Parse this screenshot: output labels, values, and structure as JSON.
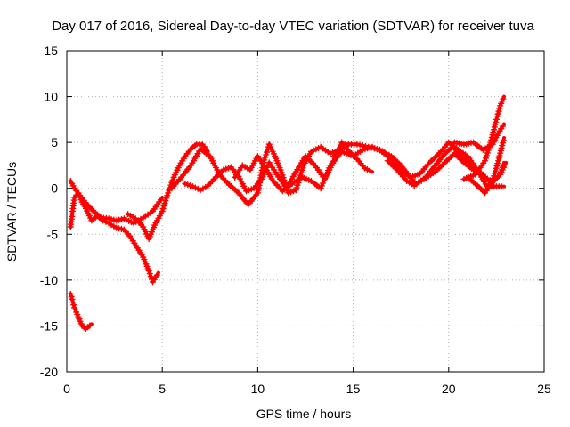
{
  "chart_data": {
    "type": "scatter",
    "title": "Day 017 of 2016, Sidereal Day-to-day VTEC variation (SDTVAR) for receiver tuva",
    "xlabel": "GPS time / hours",
    "ylabel": "SDTVAR / TECUs",
    "xlim": [
      0,
      25
    ],
    "ylim": [
      -20,
      15
    ],
    "xticks": [
      "0",
      "5",
      "10",
      "15",
      "20",
      "25"
    ],
    "yticks": [
      "-20",
      "-15",
      "-10",
      "-5",
      "0",
      "5",
      "10",
      "15"
    ],
    "grid": true,
    "marker": "plus",
    "color": "#ff0000",
    "series": [
      {
        "name": "trace-1",
        "points": [
          [
            0.2,
            -11.5
          ],
          [
            0.4,
            -13
          ],
          [
            0.6,
            -14
          ],
          [
            0.8,
            -15
          ],
          [
            1.0,
            -15.3
          ],
          [
            1.3,
            -14.8
          ]
        ]
      },
      {
        "name": "trace-2",
        "points": [
          [
            0.2,
            -4.2
          ],
          [
            0.3,
            -2.5
          ],
          [
            0.4,
            -1
          ],
          [
            0.6,
            -0.5
          ],
          [
            0.8,
            -1.5
          ],
          [
            1.0,
            -2.2
          ],
          [
            1.3,
            -3.5
          ],
          [
            1.6,
            -3
          ],
          [
            1.9,
            -3.5
          ],
          [
            2.2,
            -3.8
          ],
          [
            2.6,
            -4.3
          ],
          [
            3.0,
            -4.5
          ],
          [
            3.3,
            -5.2
          ],
          [
            3.7,
            -6.5
          ],
          [
            4.0,
            -7.5
          ],
          [
            4.3,
            -9
          ],
          [
            4.5,
            -10.2
          ],
          [
            4.8,
            -9.2
          ]
        ]
      },
      {
        "name": "trace-3",
        "points": [
          [
            0.2,
            0.8
          ],
          [
            0.4,
            0
          ],
          [
            0.7,
            -0.8
          ],
          [
            1.0,
            -1.6
          ],
          [
            1.4,
            -2.5
          ],
          [
            1.8,
            -3.2
          ],
          [
            2.2,
            -3.3
          ],
          [
            2.6,
            -3.5
          ],
          [
            3.0,
            -3.3
          ],
          [
            3.5,
            -3.8
          ],
          [
            4.0,
            -3.2
          ],
          [
            4.5,
            -2.5
          ],
          [
            5.0,
            -1
          ]
        ]
      },
      {
        "name": "trace-4",
        "points": [
          [
            3.2,
            -2.8
          ],
          [
            3.6,
            -3.3
          ],
          [
            4.0,
            -4.2
          ],
          [
            4.3,
            -5.5
          ],
          [
            4.6,
            -4
          ],
          [
            5.0,
            -2.5
          ],
          [
            5.3,
            -0.5
          ],
          [
            5.6,
            1.2
          ],
          [
            5.9,
            2.5
          ],
          [
            6.2,
            3.5
          ],
          [
            6.5,
            4.3
          ],
          [
            6.8,
            4.8
          ],
          [
            7.1,
            4.8
          ],
          [
            7.4,
            4
          ]
        ]
      },
      {
        "name": "trace-5",
        "points": [
          [
            5.5,
            0
          ],
          [
            6.0,
            1.2
          ],
          [
            6.5,
            2.5
          ],
          [
            7.0,
            4.3
          ],
          [
            7.5,
            3.5
          ],
          [
            8.0,
            1.5
          ],
          [
            8.5,
            0.4
          ],
          [
            9.0,
            -0.5
          ],
          [
            9.5,
            -1.8
          ],
          [
            10.0,
            -0.5
          ],
          [
            10.3,
            2.8
          ],
          [
            10.6,
            4.8
          ],
          [
            10.9,
            3.5
          ],
          [
            11.2,
            2
          ],
          [
            11.6,
            -0.5
          ],
          [
            12.0,
            -0.2
          ],
          [
            12.4,
            2.5
          ],
          [
            12.8,
            4
          ],
          [
            13.3,
            4.5
          ],
          [
            13.8,
            3.8
          ],
          [
            14.3,
            4.2
          ],
          [
            14.8,
            4.8
          ]
        ]
      },
      {
        "name": "trace-6",
        "points": [
          [
            6.2,
            0.5
          ],
          [
            6.6,
            0.2
          ],
          [
            7.0,
            -0.2
          ],
          [
            7.4,
            0.3
          ],
          [
            7.8,
            1.2
          ],
          [
            8.2,
            2
          ],
          [
            8.6,
            2.3
          ],
          [
            9.0,
            1.3
          ],
          [
            9.4,
            -0.3
          ],
          [
            9.8,
            0
          ],
          [
            10.2,
            1
          ],
          [
            10.6,
            2.8
          ],
          [
            11.0,
            1.5
          ],
          [
            11.5,
            0
          ],
          [
            12.0,
            1.8
          ],
          [
            12.5,
            3.5
          ],
          [
            13.0,
            2.5
          ],
          [
            13.5,
            1
          ],
          [
            14.0,
            3
          ],
          [
            14.4,
            5
          ],
          [
            14.8,
            4
          ],
          [
            15.2,
            3.2
          ],
          [
            15.6,
            2.2
          ],
          [
            16.0,
            1.8
          ]
        ]
      },
      {
        "name": "trace-7",
        "points": [
          [
            8.8,
            1.2
          ],
          [
            9.2,
            2.5
          ],
          [
            9.6,
            2
          ],
          [
            10.0,
            3.5
          ],
          [
            10.4,
            2.2
          ],
          [
            10.8,
            0.8
          ],
          [
            11.3,
            -0.3
          ],
          [
            11.8,
            0.5
          ],
          [
            12.3,
            1.2
          ],
          [
            12.8,
            0.8
          ],
          [
            13.3,
            0
          ],
          [
            13.8,
            2.5
          ],
          [
            14.4,
            4
          ],
          [
            15.0,
            3.5
          ],
          [
            15.5,
            4.2
          ],
          [
            16.0,
            4.5
          ],
          [
            16.5,
            4
          ],
          [
            17.0,
            3.2
          ],
          [
            17.5,
            2
          ],
          [
            18.0,
            1.2
          ],
          [
            18.5,
            1.6
          ],
          [
            19.0,
            2.8
          ],
          [
            19.5,
            3.8
          ],
          [
            20.0,
            5
          ],
          [
            20.5,
            4.2
          ],
          [
            21.0,
            3.5
          ],
          [
            21.5,
            2
          ],
          [
            22.0,
            0.2
          ],
          [
            22.5,
            0.2
          ],
          [
            22.9,
            0.2
          ]
        ]
      },
      {
        "name": "trace-8",
        "points": [
          [
            14.0,
            3.5
          ],
          [
            14.6,
            4.8
          ],
          [
            15.2,
            4.8
          ],
          [
            15.8,
            4.5
          ],
          [
            16.4,
            4.2
          ],
          [
            17.0,
            3.5
          ],
          [
            17.5,
            2.5
          ],
          [
            18.0,
            1.2
          ],
          [
            18.3,
            0.5
          ],
          [
            18.8,
            1.2
          ],
          [
            19.3,
            2.5
          ],
          [
            19.8,
            3.8
          ],
          [
            20.2,
            4.5
          ],
          [
            20.6,
            3.8
          ],
          [
            21.0,
            3
          ],
          [
            21.5,
            2
          ],
          [
            21.9,
            1.2
          ],
          [
            22.3,
            0.7
          ],
          [
            22.7,
            1.5
          ],
          [
            22.9,
            2.8
          ]
        ]
      },
      {
        "name": "trace-9",
        "points": [
          [
            16.8,
            3
          ],
          [
            17.3,
            2
          ],
          [
            17.8,
            0.8
          ],
          [
            18.2,
            0.3
          ],
          [
            18.7,
            1
          ],
          [
            19.3,
            1.8
          ],
          [
            19.9,
            3
          ],
          [
            20.3,
            3.8
          ],
          [
            20.8,
            2.8
          ],
          [
            21.3,
            2
          ],
          [
            21.8,
            1.5
          ],
          [
            22.2,
            0.5
          ],
          [
            22.7,
            1.5
          ],
          [
            23.0,
            2.8
          ]
        ]
      },
      {
        "name": "trace-10",
        "points": [
          [
            21.0,
            1.2
          ],
          [
            21.5,
            0.3
          ],
          [
            21.9,
            -0.5
          ],
          [
            22.3,
            0.8
          ],
          [
            22.6,
            3
          ],
          [
            22.9,
            5.5
          ]
        ]
      },
      {
        "name": "trace-11",
        "points": [
          [
            20.3,
            5
          ],
          [
            20.8,
            4.8
          ],
          [
            21.3,
            5
          ],
          [
            21.8,
            4.2
          ],
          [
            22.3,
            4.8
          ],
          [
            22.6,
            6
          ],
          [
            22.9,
            7
          ]
        ]
      },
      {
        "name": "trace-12",
        "points": [
          [
            20.8,
            1
          ],
          [
            21.4,
            1.5
          ],
          [
            21.9,
            3
          ],
          [
            22.2,
            5
          ],
          [
            22.5,
            7.5
          ],
          [
            22.7,
            9
          ],
          [
            22.9,
            10
          ]
        ]
      }
    ]
  }
}
